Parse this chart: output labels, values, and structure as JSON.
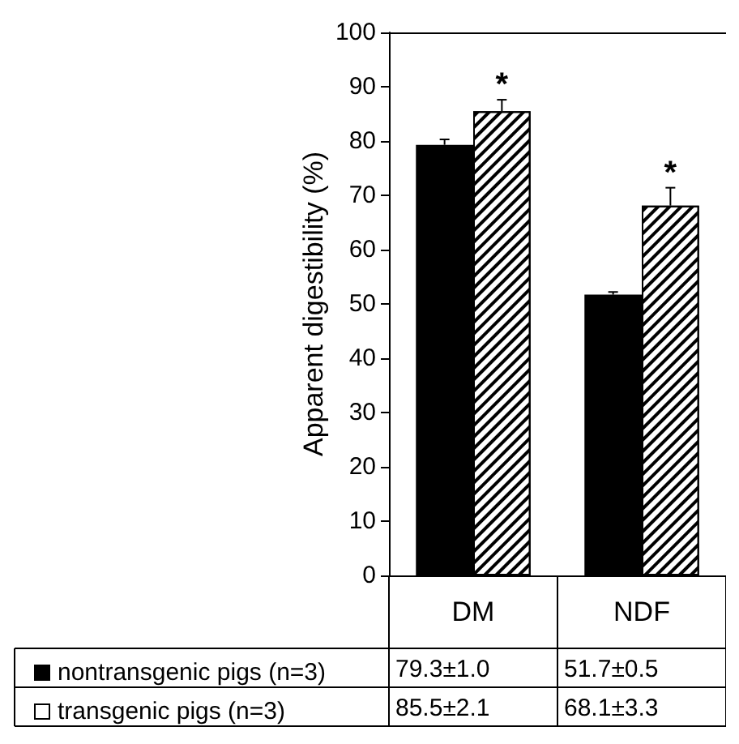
{
  "chart_data": {
    "type": "bar",
    "ylabel": "Apparent digestibility (%)",
    "categories": [
      "DM",
      "NDF"
    ],
    "series": [
      {
        "name": "nontransgenic pigs (n=3)",
        "color": "#000000",
        "values": [
          79.3,
          51.7
        ],
        "errors": [
          1.0,
          0.5
        ],
        "value_labels": [
          "79.3±1.0",
          "51.7±0.5"
        ]
      },
      {
        "name": "transgenic pigs (n=3)",
        "color": "#ffffff",
        "values": [
          85.5,
          68.1
        ],
        "errors": [
          2.1,
          3.3
        ],
        "value_labels": [
          "85.5±2.1",
          "68.1±3.3"
        ]
      }
    ],
    "ylim": [
      0,
      100
    ],
    "yticks": [
      0,
      10,
      20,
      30,
      40,
      50,
      60,
      70,
      80,
      90,
      100
    ],
    "grid": false,
    "legend": "bottom",
    "annotations": [
      "*",
      "*"
    ]
  }
}
